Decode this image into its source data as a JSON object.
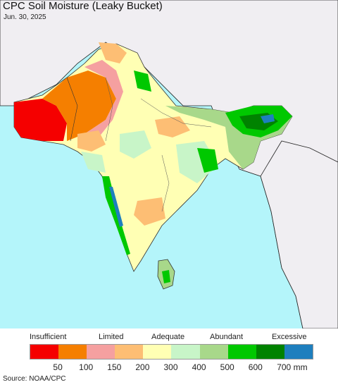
{
  "title": "CPC Soil Moisture (Leaky Bucket)",
  "date": "Jun. 30, 2025",
  "source": "Source: NOAA/CPC",
  "legend": {
    "categories": {
      "insufficient": "Insufficient",
      "limited": "Limited",
      "adequate": "Adequate",
      "abundant": "Abundant",
      "excessive": "Excessive"
    },
    "colors": [
      "#f50000",
      "#f57f00",
      "#f5a0a0",
      "#fdbe74",
      "#ffffb4",
      "#c8f5c8",
      "#a8d88a",
      "#00c800",
      "#008200",
      "#1e7fbe"
    ],
    "ticks": [
      "50",
      "100",
      "150",
      "200",
      "300",
      "400",
      "500",
      "600",
      "700 mm"
    ]
  },
  "map_colors": {
    "ocean": "#b4f5fa",
    "outside_land": "#f0eef2",
    "border": "#1a1a1a"
  }
}
